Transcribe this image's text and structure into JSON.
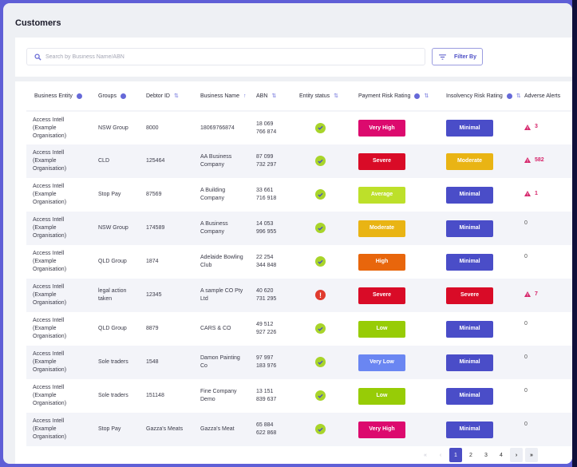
{
  "page": {
    "title": "Customers"
  },
  "search": {
    "placeholder": "Search by Business Name/ABN",
    "value": ""
  },
  "filter": {
    "label": "Filter By"
  },
  "table": {
    "columns": [
      {
        "label": "Business Entity",
        "icon": "info-icon"
      },
      {
        "label": "Groups",
        "icon": "info-icon"
      },
      {
        "label": "Debtor ID",
        "icon": "sort-icon"
      },
      {
        "label": "Business Name",
        "icon": "sort-asc-icon"
      },
      {
        "label": "ABN",
        "icon": "sort-icon"
      },
      {
        "label": "Entity status",
        "icon": "sort-icon"
      },
      {
        "label": "Payment Risk Rating",
        "icon": "info-icon+sort-icon"
      },
      {
        "label": "Insolvency Risk Rating",
        "icon": "info-icon+sort-icon"
      },
      {
        "label": "Adverse Alerts",
        "icon": ""
      }
    ],
    "rows": [
      {
        "entity": "Access Intell (Example Organisation)",
        "group": "NSW Group",
        "debtor_id": "8000",
        "business_name": "18069766874",
        "abn_1": "18 069",
        "abn_2": "766 874",
        "status": "ok",
        "payment": "Very High",
        "insolvency": "Minimal",
        "alerts": "3",
        "has_alert": true
      },
      {
        "entity": "Access Intell (Example Organisation)",
        "group": "CLD",
        "debtor_id": "125464",
        "business_name": "AA Business Company",
        "abn_1": "87 099",
        "abn_2": "732 297",
        "status": "ok",
        "payment": "Severe",
        "insolvency": "Moderate",
        "alerts": "582",
        "has_alert": true
      },
      {
        "entity": "Access Intell (Example Organisation)",
        "group": "Stop Pay",
        "debtor_id": "87569",
        "business_name": "A Building Company",
        "abn_1": "33 661",
        "abn_2": "716 918",
        "status": "ok",
        "payment": "Average",
        "insolvency": "Minimal",
        "alerts": "1",
        "has_alert": true
      },
      {
        "entity": "Access Intell (Example Organisation)",
        "group": "NSW Group",
        "debtor_id": "174589",
        "business_name": "A Business Company",
        "abn_1": "14 053",
        "abn_2": "996 955",
        "status": "ok",
        "payment": "Moderate",
        "insolvency": "Minimal",
        "alerts": "0",
        "has_alert": false
      },
      {
        "entity": "Access Intell (Example Organisation)",
        "group": "QLD Group",
        "debtor_id": "1874",
        "business_name": "Adelaide Bowling Club",
        "abn_1": "22 254",
        "abn_2": "344 848",
        "status": "ok",
        "payment": "High",
        "insolvency": "Minimal",
        "alerts": "0",
        "has_alert": false
      },
      {
        "entity": "Access Intell (Example Organisation)",
        "group": "legal action taken",
        "debtor_id": "12345",
        "business_name": "A sample CO Pty Ltd",
        "abn_1": "40 620",
        "abn_2": "731 295",
        "status": "error",
        "payment": "Severe",
        "insolvency": "Severe",
        "alerts": "7",
        "has_alert": true
      },
      {
        "entity": "Access Intell (Example Organisation)",
        "group": "QLD Group",
        "debtor_id": "8879",
        "business_name": "CARS & CO",
        "abn_1": "49 512",
        "abn_2": "927 226",
        "status": "ok",
        "payment": "Low",
        "insolvency": "Minimal",
        "alerts": "0",
        "has_alert": false
      },
      {
        "entity": "Access Intell (Example Organisation)",
        "group": "Sole traders",
        "debtor_id": "1548",
        "business_name": "Damon Painting Co",
        "abn_1": "97 997",
        "abn_2": "183 976",
        "status": "ok",
        "payment": "Very Low",
        "insolvency": "Minimal",
        "alerts": "0",
        "has_alert": false
      },
      {
        "entity": "Access Intell (Example Organisation)",
        "group": "Sole traders",
        "debtor_id": "151148",
        "business_name": "Fine Company Demo",
        "abn_1": "13 151",
        "abn_2": "839 637",
        "status": "ok",
        "payment": "Low",
        "insolvency": "Minimal",
        "alerts": "0",
        "has_alert": false
      },
      {
        "entity": "Access Intell (Example Organisation)",
        "group": "Stop Pay",
        "debtor_id": "Gazza's Meats",
        "business_name": "Gazza's Meat",
        "abn_1": "65 884",
        "abn_2": "622 868",
        "status": "ok",
        "payment": "Very High",
        "insolvency": "Minimal",
        "alerts": "0",
        "has_alert": false
      }
    ]
  },
  "rating_colors": {
    "Very High": "#dc0a6e",
    "Severe": "#d90b27",
    "High": "#e8660c",
    "Moderate": "#e9b414",
    "Average": "#bde02a",
    "Low": "#97cc06",
    "Very Low": "#6a86f2",
    "Minimal": "#4a4dc8"
  },
  "pagination": {
    "first": "«",
    "prev": "‹",
    "pages": [
      "1",
      "2",
      "3",
      "4"
    ],
    "current": "1",
    "next": "›",
    "last": "»"
  }
}
